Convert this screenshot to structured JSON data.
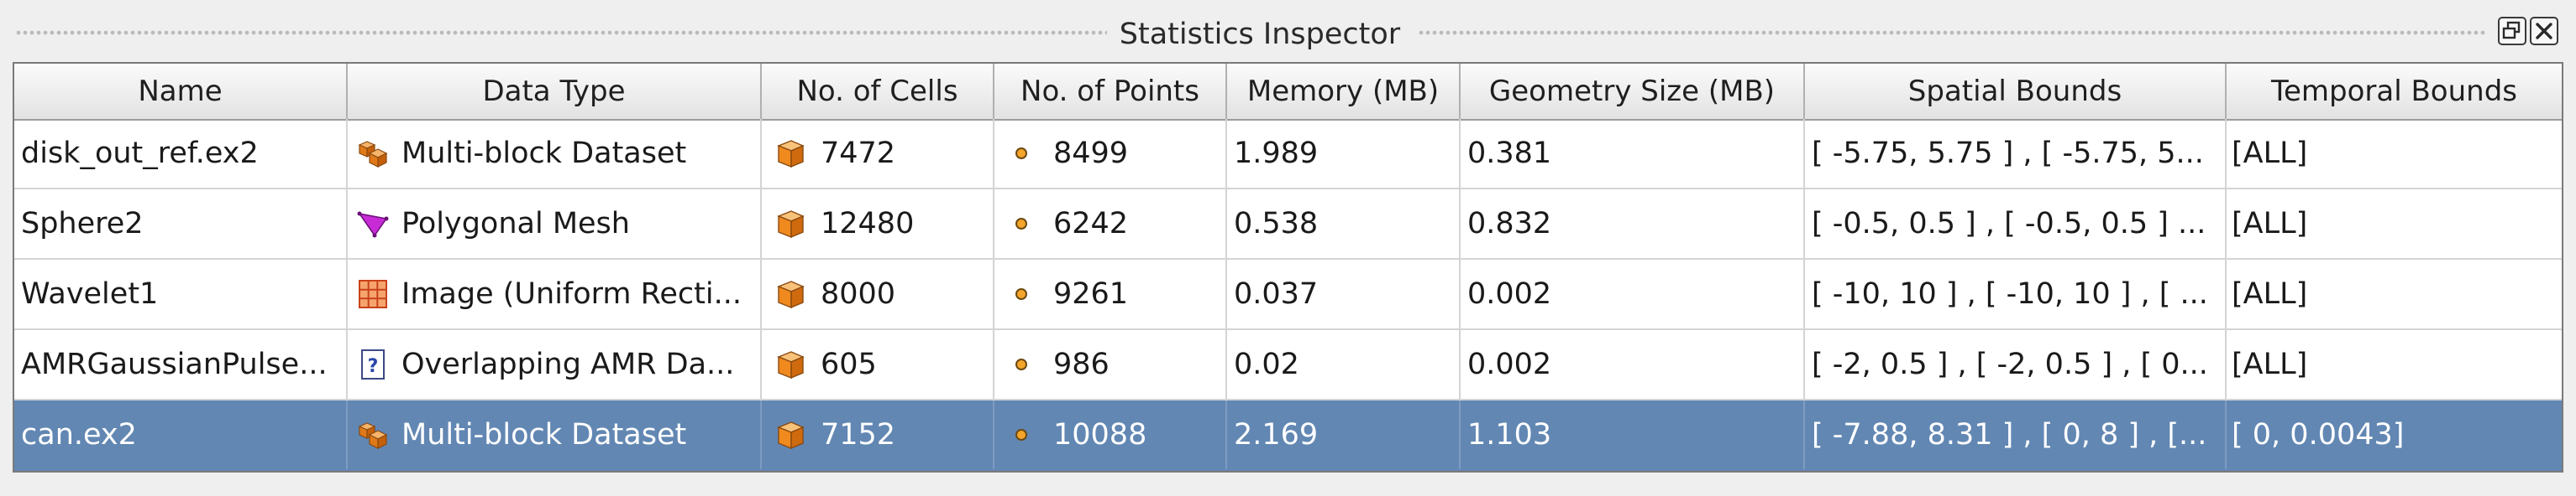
{
  "window": {
    "title": "Statistics Inspector",
    "float_button_icon": "float-window-icon",
    "close_button_icon": "close-icon"
  },
  "table": {
    "columns": [
      "Name",
      "Data Type",
      "No. of Cells",
      "No. of Points",
      "Memory (MB)",
      "Geometry Size (MB)",
      "Spatial Bounds",
      "Temporal Bounds"
    ],
    "selected_row_index": 4,
    "selected_row_color": "#6287b3",
    "rows": [
      {
        "name": "disk_out_ref.ex2",
        "type_icon": "multiblock-dataset-icon",
        "data_type": "Multi-block Dataset",
        "cells_icon": "cell-cube-icon",
        "cells": "7472",
        "points_icon": "point-icon",
        "points": "8499",
        "memory": "1.989",
        "geometry_size": "0.381",
        "spatial_bounds": "[ -5.75, 5.75 ] , [ -5.75, 5...",
        "temporal_bounds": "[ALL]"
      },
      {
        "name": "Sphere2",
        "type_icon": "polygonal-mesh-icon",
        "data_type": "Polygonal Mesh",
        "cells_icon": "cell-cube-icon",
        "cells": "12480",
        "points_icon": "point-icon",
        "points": "6242",
        "memory": "0.538",
        "geometry_size": "0.832",
        "spatial_bounds": "[ -0.5, 0.5 ] , [ -0.5, 0.5 ] ...",
        "temporal_bounds": "[ALL]"
      },
      {
        "name": "Wavelet1",
        "type_icon": "image-grid-icon",
        "data_type": "Image (Uniform Recti...",
        "cells_icon": "cell-cube-icon",
        "cells": "8000",
        "points_icon": "point-icon",
        "points": "9261",
        "memory": "0.037",
        "geometry_size": "0.002",
        "spatial_bounds": "[ -10, 10 ] , [ -10, 10 ] , [ ...",
        "temporal_bounds": "[ALL]"
      },
      {
        "name": "AMRGaussianPulse...",
        "type_icon": "unknown-type-icon",
        "data_type": "Overlapping AMR Da...",
        "cells_icon": "cell-cube-icon",
        "cells": "605",
        "points_icon": "point-icon",
        "points": "986",
        "memory": "0.02",
        "geometry_size": "0.002",
        "spatial_bounds": "[ -2, 0.5 ] , [ -2, 0.5 ] , [ 0...",
        "temporal_bounds": "[ALL]"
      },
      {
        "name": "can.ex2",
        "type_icon": "multiblock-dataset-icon",
        "data_type": "Multi-block Dataset",
        "cells_icon": "cell-cube-icon",
        "cells": "7152",
        "points_icon": "point-icon",
        "points": "10088",
        "memory": "2.169",
        "geometry_size": "1.103",
        "spatial_bounds": "[ -7.88, 8.31 ] , [ 0, 8 ] , [...",
        "temporal_bounds": "[ 0, 0.0043]"
      }
    ]
  }
}
